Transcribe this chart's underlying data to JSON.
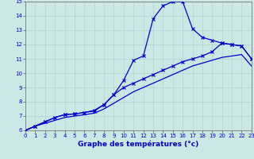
{
  "xlabel": "Graphe des températures (°c)",
  "bg_color": "#cce8e5",
  "line_color": "#0000cc",
  "grid_color": "#aacccc",
  "xlim": [
    0,
    23
  ],
  "ylim": [
    6,
    15
  ],
  "xticks": [
    0,
    1,
    2,
    3,
    4,
    5,
    6,
    7,
    8,
    9,
    10,
    11,
    12,
    13,
    14,
    15,
    16,
    17,
    18,
    19,
    20,
    21,
    22,
    23
  ],
  "yticks": [
    6,
    7,
    8,
    9,
    10,
    11,
    12,
    13,
    14,
    15
  ],
  "line1_x": [
    0,
    1,
    2,
    3,
    4,
    5,
    6,
    7,
    8,
    9,
    10,
    11,
    12,
    13,
    14,
    15,
    16,
    17,
    18,
    19,
    20,
    21,
    22,
    23
  ],
  "line1_y": [
    6.0,
    6.3,
    6.6,
    6.9,
    7.1,
    7.15,
    7.25,
    7.35,
    7.8,
    8.5,
    9.5,
    10.9,
    11.2,
    13.8,
    14.7,
    15.0,
    15.0,
    13.1,
    12.5,
    12.3,
    12.1,
    12.0,
    11.9,
    11.0
  ],
  "line2_x": [
    0,
    1,
    2,
    3,
    4,
    5,
    6,
    7,
    8,
    9,
    10,
    11,
    12,
    13,
    14,
    15,
    16,
    17,
    18,
    19,
    20,
    21,
    22,
    23
  ],
  "line2_y": [
    6.0,
    6.3,
    6.5,
    6.7,
    6.9,
    7.0,
    7.1,
    7.2,
    7.5,
    7.9,
    8.3,
    8.7,
    9.0,
    9.3,
    9.6,
    9.9,
    10.2,
    10.5,
    10.7,
    10.9,
    11.1,
    11.2,
    11.3,
    10.5
  ],
  "line3_x": [
    0,
    1,
    2,
    3,
    4,
    5,
    6,
    7,
    8,
    9,
    10,
    11,
    12,
    13,
    14,
    15,
    16,
    17,
    18,
    19,
    20,
    21,
    22,
    23
  ],
  "line3_y": [
    6.0,
    6.3,
    6.6,
    6.9,
    7.1,
    7.15,
    7.25,
    7.4,
    7.8,
    8.5,
    9.0,
    9.3,
    9.6,
    9.9,
    10.2,
    10.5,
    10.8,
    11.0,
    11.2,
    11.5,
    12.1,
    12.0,
    11.9,
    11.0
  ],
  "xlabel_fontsize": 6.5,
  "tick_fontsize": 5.0,
  "lw": 0.9,
  "marker_size": 2.5
}
